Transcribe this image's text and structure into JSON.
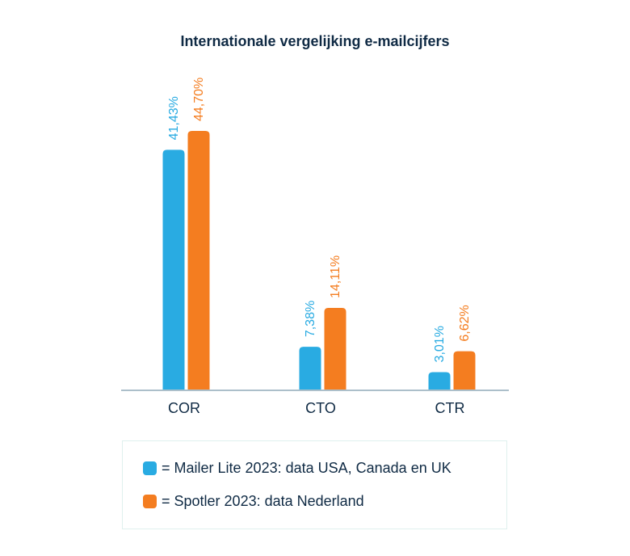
{
  "chart_data": {
    "type": "bar",
    "title": "Internationale vergelijking e-mailcijfers",
    "categories": [
      "COR",
      "CTO",
      "CTR"
    ],
    "series": [
      {
        "name": "= Mailer Lite 2023: data USA, Canada en UK",
        "color": "#29abe2",
        "values": [
          41.43,
          7.38,
          3.01
        ],
        "labels": [
          "41,43%",
          "7,38%",
          "3,01%"
        ]
      },
      {
        "name": "= Spotler 2023: data Nederland",
        "color": "#f47d20",
        "values": [
          44.7,
          14.11,
          6.62
        ],
        "labels": [
          "44,70%",
          "14,11%",
          "6,62%"
        ]
      }
    ],
    "ylim": [
      0,
      44.7
    ],
    "grid": false,
    "legend_position": "bottom",
    "axis_color": "#5a7f95"
  }
}
